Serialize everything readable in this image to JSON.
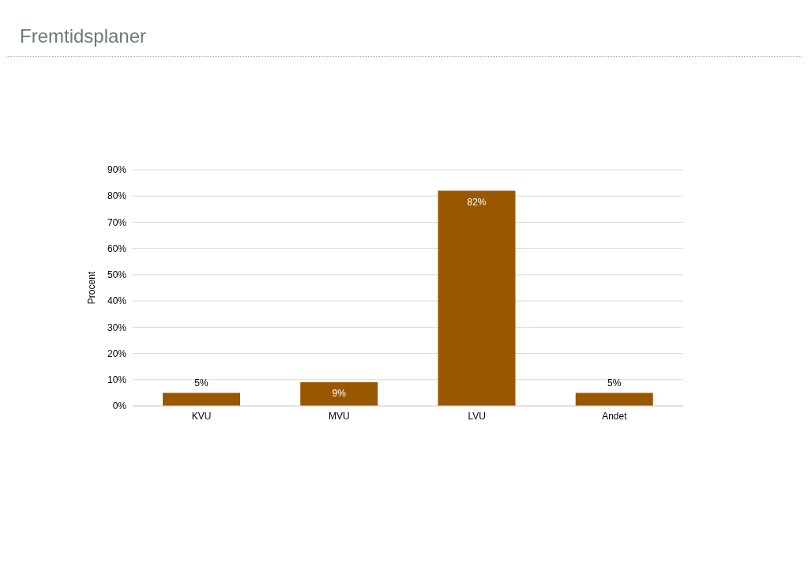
{
  "chart_data": {
    "type": "bar",
    "title": "Fremtidsplaner",
    "ylabel": "Procent",
    "categories": [
      "KVU",
      "MVU",
      "LVU",
      "Andet"
    ],
    "values": [
      5,
      9,
      82,
      5
    ],
    "value_labels": [
      "5%",
      "9%",
      "82%",
      "5%"
    ],
    "color": "#995700",
    "ylim": [
      0,
      90
    ],
    "yticks": [
      {
        "value": 0,
        "label": "0%"
      },
      {
        "value": 10,
        "label": "10%"
      },
      {
        "value": 20,
        "label": "20%"
      },
      {
        "value": 30,
        "label": "30%"
      },
      {
        "value": 40,
        "label": "40%"
      },
      {
        "value": 50,
        "label": "50%"
      },
      {
        "value": 60,
        "label": "60%"
      },
      {
        "value": 70,
        "label": "70%"
      },
      {
        "value": 80,
        "label": "80%"
      },
      {
        "value": 90,
        "label": "90%"
      }
    ],
    "grid": "y"
  }
}
